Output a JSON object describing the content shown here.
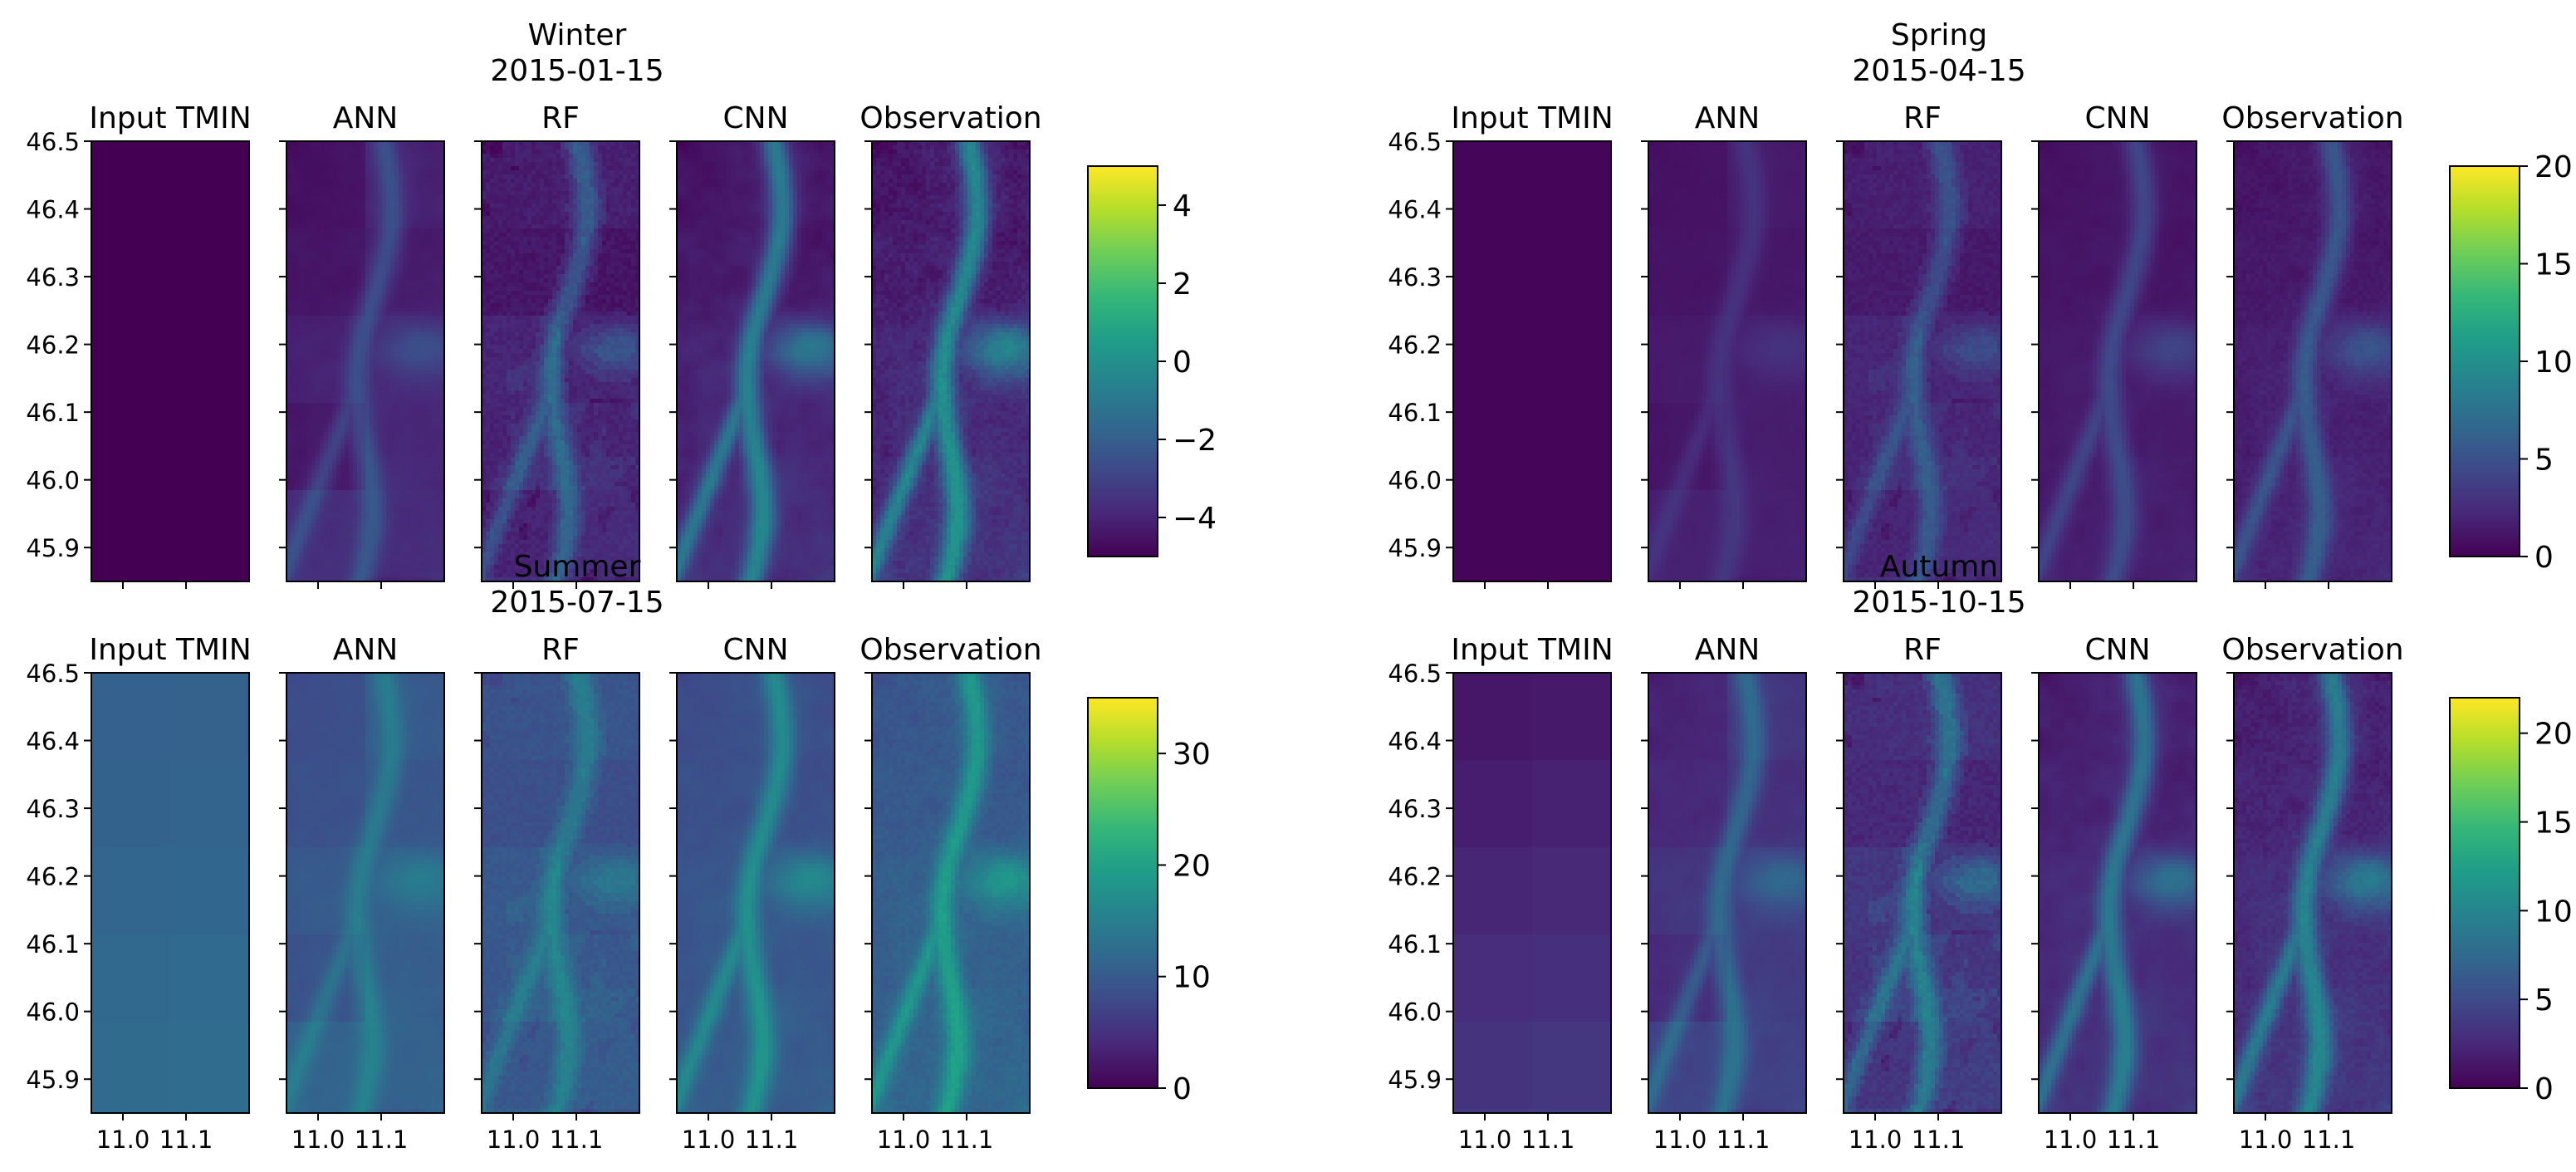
{
  "colors": {
    "viridis": [
      "#440154",
      "#482878",
      "#3e4989",
      "#31688e",
      "#26828e",
      "#1f9e89",
      "#35b779",
      "#6ece58",
      "#b5de2b",
      "#fde725"
    ],
    "frame": "#000000",
    "background": "#ffffff"
  },
  "chart_data": {
    "type": "heatmap",
    "colormap": "viridis",
    "panel_titles": [
      "Input TMIN",
      "ANN",
      "RF",
      "CNN",
      "Observation"
    ],
    "lat_ticks": [
      "46.5",
      "46.4",
      "46.3",
      "46.2",
      "46.1",
      "46.0",
      "45.9"
    ],
    "lat_values": [
      46.5,
      46.4,
      46.3,
      46.2,
      46.1,
      46.0,
      45.9
    ],
    "lat_range": [
      45.85,
      46.5
    ],
    "lon_ticks": [
      "11.0",
      "11.1"
    ],
    "lon_values": [
      11.0,
      11.1
    ],
    "lon_range": [
      10.95,
      11.2
    ],
    "seasons": [
      {
        "id": "winter",
        "season": "Winter",
        "date": "2015-01-15",
        "show_lon_labels": false,
        "colorbar": {
          "min": -5,
          "max": 5,
          "ticks": [
            4,
            2,
            0,
            -2,
            -4
          ],
          "tick_labels": [
            "4",
            "2",
            "0",
            "−2",
            "−4"
          ]
        },
        "panels": [
          {
            "name": "Input TMIN",
            "style": "uniform",
            "base": -5.0,
            "amp": 0.0
          },
          {
            "name": "ANN",
            "style": "blocky",
            "base": -5.0,
            "amp": 3.2
          },
          {
            "name": "RF",
            "style": "patchy",
            "base": -5.0,
            "amp": 3.8
          },
          {
            "name": "CNN",
            "style": "smooth",
            "base": -5.0,
            "amp": 4.6
          },
          {
            "name": "Observation",
            "style": "detailed",
            "base": -5.0,
            "amp": 5.2
          }
        ]
      },
      {
        "id": "spring",
        "season": "Spring",
        "date": "2015-04-15",
        "show_lon_labels": false,
        "colorbar": {
          "min": 0,
          "max": 20,
          "ticks": [
            20,
            15,
            10,
            5,
            0
          ],
          "tick_labels": [
            "20",
            "15",
            "10",
            "5",
            "0"
          ]
        },
        "panels": [
          {
            "name": "Input TMIN",
            "style": "uniform",
            "base": 0.3,
            "amp": 0.0
          },
          {
            "name": "ANN",
            "style": "blocky",
            "base": 0.5,
            "amp": 3.2
          },
          {
            "name": "RF",
            "style": "patchy",
            "base": 0.5,
            "amp": 6.0
          },
          {
            "name": "CNN",
            "style": "smooth",
            "base": 0.5,
            "amp": 4.2
          },
          {
            "name": "Observation",
            "style": "detailed",
            "base": 0.5,
            "amp": 5.5
          }
        ]
      },
      {
        "id": "summer",
        "season": "Summer",
        "date": "2015-07-15",
        "show_lon_labels": true,
        "colorbar": {
          "min": 0,
          "max": 35,
          "ticks": [
            30,
            20,
            10,
            0
          ],
          "tick_labels": [
            "30",
            "20",
            "10",
            "0"
          ]
        },
        "panels": [
          {
            "name": "Input TMIN",
            "style": "coarse",
            "base": 10.0,
            "amp": 2.5
          },
          {
            "name": "ANN",
            "style": "blocky",
            "base": 7.0,
            "amp": 10.0
          },
          {
            "name": "RF",
            "style": "patchy",
            "base": 7.0,
            "amp": 10.0
          },
          {
            "name": "CNN",
            "style": "smooth",
            "base": 7.0,
            "amp": 11.0
          },
          {
            "name": "Observation",
            "style": "detailed",
            "base": 8.0,
            "amp": 12.0
          }
        ]
      },
      {
        "id": "autumn",
        "season": "Autumn",
        "date": "2015-10-15",
        "show_lon_labels": true,
        "colorbar": {
          "min": 0,
          "max": 22,
          "ticks": [
            20,
            15,
            10,
            5,
            0
          ],
          "tick_labels": [
            "20",
            "15",
            "10",
            "5",
            "0"
          ]
        },
        "panels": [
          {
            "name": "Input TMIN",
            "style": "coarse",
            "base": 0.3,
            "amp": 3.5
          },
          {
            "name": "ANN",
            "style": "blocky",
            "base": 1.0,
            "amp": 8.5
          },
          {
            "name": "RF",
            "style": "patchy",
            "base": 1.0,
            "amp": 9.5
          },
          {
            "name": "CNN",
            "style": "smooth",
            "base": 0.8,
            "amp": 8.5
          },
          {
            "name": "Observation",
            "style": "detailed",
            "base": 0.8,
            "amp": 9.5
          }
        ]
      }
    ]
  }
}
